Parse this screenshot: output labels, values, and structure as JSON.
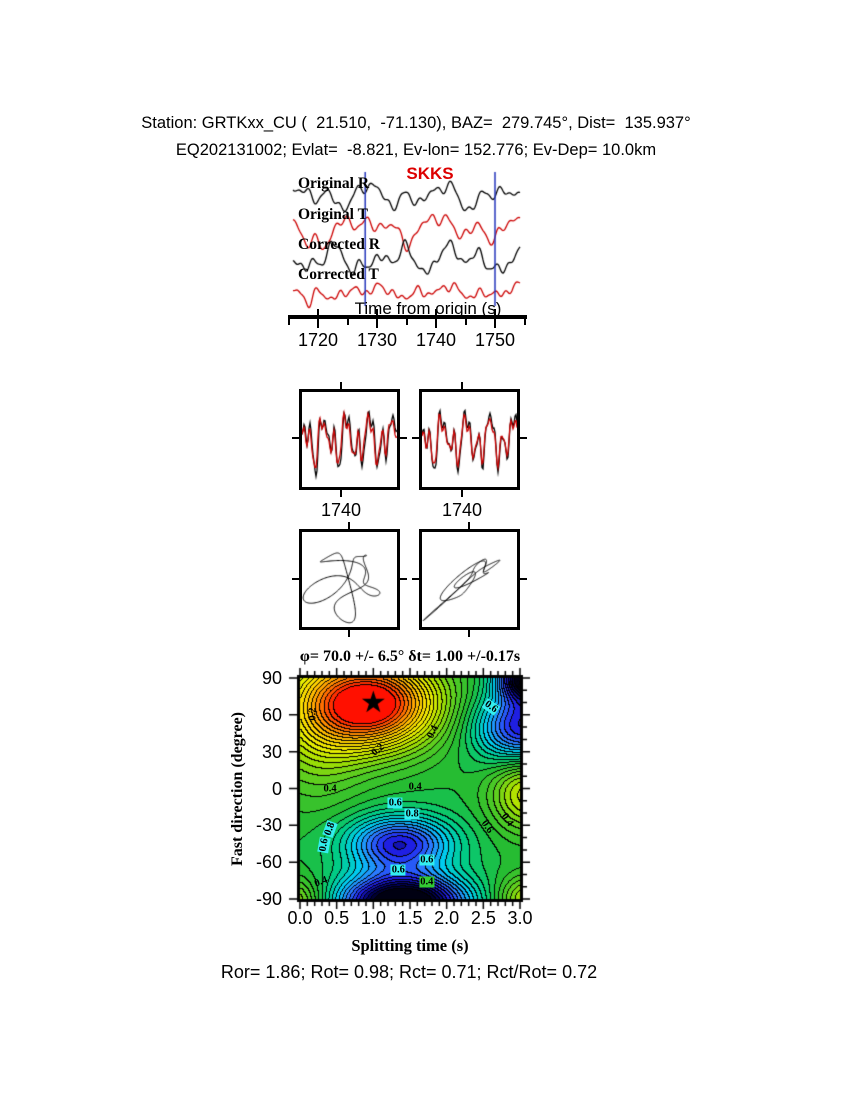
{
  "header": {
    "line1": "Station: GRTKxx_CU (  21.510,  -71.130), BAZ=  279.745°, Dist=  135.937°",
    "line2": "EQ202131002; Evlat=  -8.821, Ev-lon= 152.776; Ev-Dep= 10.0km"
  },
  "footer": {
    "stats": "Ror= 1.86; Rot= 0.98; Rct= 0.71; Rct/Rot= 0.72"
  },
  "chart_data": [
    {
      "type": "line",
      "panel": "seismograms",
      "phase": "SKKS",
      "phase_color": "#dd0000",
      "xlabel": "Time from origin (s)",
      "x_ticks": [
        1720,
        1730,
        1740,
        1750
      ],
      "x_minor_step": 5,
      "x_range": [
        1715,
        1755
      ],
      "window": [
        1728,
        1750
      ],
      "pick_color": "#2233bb",
      "traces": [
        {
          "name": "Original R",
          "color": "#000000",
          "baseline": 30,
          "harmonics": [
            [
              7,
              3.3,
              0.8
            ],
            [
              5.5,
              5.7,
              2.4
            ],
            [
              4.5,
              9.1,
              4.9
            ],
            [
              3,
              14.3,
              1.6
            ],
            [
              2,
              22.7,
              3.9
            ]
          ],
          "spikes": []
        },
        {
          "name": "Original T",
          "color": "#cc0000",
          "baseline": 62,
          "harmonics": [
            [
              8,
              2.9,
              2.2
            ],
            [
              6,
              5.1,
              0.7
            ],
            [
              5,
              8.3,
              3.4
            ],
            [
              3.5,
              13.7,
              5.6
            ],
            [
              2.5,
              21.1,
              1.3
            ]
          ],
          "spikes": [
            [
              0.06,
              -18,
              0.025
            ]
          ]
        },
        {
          "name": "Corrected R",
          "color": "#000000",
          "baseline": 94,
          "harmonics": [
            [
              7.5,
              3.5,
              4.1
            ],
            [
              6,
              6.1,
              0.9
            ],
            [
              5,
              9.7,
              2.7
            ],
            [
              3.5,
              15.1,
              5.2
            ],
            [
              2,
              24.3,
              1.8
            ]
          ],
          "spikes": [
            [
              0.66,
              12,
              0.02
            ]
          ]
        },
        {
          "name": "Corrected T",
          "color": "#cc0000",
          "baseline": 126,
          "harmonics": [
            [
              3.5,
              3.1,
              1.1
            ],
            [
              3,
              6.7,
              3.8
            ],
            [
              2.6,
              11.3,
              0.4
            ],
            [
              2.2,
              17.9,
              2.9
            ],
            [
              1.5,
              26.1,
              5.0
            ]
          ],
          "spikes": [
            [
              0.07,
              -14,
              0.02
            ]
          ]
        }
      ]
    },
    {
      "type": "line",
      "panel": "windowed waveform comparison",
      "boxes": [
        {
          "tick_label": "1740",
          "black": [
            [
              16,
              4.3,
              1.2
            ],
            [
              13,
              7.9,
              3.7
            ],
            [
              9,
              12.1,
              0.3
            ],
            [
              6,
              19.3,
              4.4
            ]
          ],
          "red": [
            [
              14,
              4.3,
              1.55
            ],
            [
              11,
              7.9,
              4.05
            ],
            [
              8,
              12.1,
              0.65
            ],
            [
              5,
              19.3,
              4.75
            ]
          ]
        },
        {
          "tick_label": "1740",
          "black": [
            [
              16,
              4.1,
              2.0
            ],
            [
              13,
              7.7,
              4.5
            ],
            [
              9,
              11.9,
              1.1
            ],
            [
              6,
              18.7,
              5.2
            ]
          ],
          "red": [
            [
              13,
              4.1,
              2.15
            ],
            [
              11,
              7.7,
              4.65
            ],
            [
              8,
              11.9,
              1.25
            ],
            [
              5,
              18.7,
              5.35
            ]
          ]
        }
      ]
    },
    {
      "type": "scatter",
      "panel": "particle motion",
      "boxes": [
        {
          "x": [
            [
              20,
              2,
              0.3
            ],
            [
              14,
              3,
              1.9
            ],
            [
              9,
              5,
              4.2
            ],
            [
              5,
              8,
              0.8
            ]
          ],
          "y": [
            [
              21,
              2,
              1.8
            ],
            [
              14,
              3,
              0.4
            ],
            [
              8,
              5,
              2.9
            ],
            [
              5,
              7,
              5.1
            ]
          ]
        },
        {
          "x": [
            [
              20,
              2,
              0.3
            ],
            [
              14,
              3,
              1.9
            ],
            [
              9,
              5,
              4.2
            ],
            [
              5,
              8,
              0.8
            ]
          ],
          "y": [
            [
              16,
              2,
              0.5
            ],
            [
              11,
              3,
              2.1
            ],
            [
              7,
              5,
              4.4
            ],
            [
              4,
              8,
              1.0
            ],
            [
              7,
              4,
              2.0
            ]
          ]
        }
      ]
    },
    {
      "type": "heatmap",
      "panel": "misfit contour map",
      "title": "φ= 70.0 +/- 6.5° δt= 1.00 +/-0.17s",
      "xlabel": "Splitting time (s)",
      "ylabel": "Fast direction (degree)",
      "x_ticks": [
        "0.0",
        "0.5",
        "1.0",
        "1.5",
        "2.0",
        "2.5",
        "3.0"
      ],
      "y_ticks": [
        90,
        60,
        30,
        0,
        -30,
        -60,
        -90
      ],
      "x_range": [
        0,
        3
      ],
      "y_range": [
        -90,
        90
      ],
      "best_fit": {
        "phi": 70.0,
        "phi_err": 6.5,
        "dt": 1.0,
        "dt_err": 0.17
      },
      "field": {
        "base": 0.47,
        "nbands": 36,
        "bumps": [
          [
            1.0,
            70,
            0.55,
            0.62,
            26
          ],
          [
            0.2,
            55,
            0.16,
            0.5,
            42
          ],
          [
            3.05,
            50,
            -0.34,
            0.45,
            20
          ],
          [
            3.1,
            92,
            -0.5,
            0.28,
            14
          ],
          [
            1.35,
            -45,
            -0.33,
            0.5,
            16
          ],
          [
            1.4,
            -93,
            -0.55,
            0.6,
            16
          ],
          [
            3.1,
            -3,
            0.22,
            0.35,
            22
          ],
          [
            -0.15,
            -93,
            0.18,
            0.33,
            14
          ],
          [
            3.15,
            -91,
            0.2,
            0.33,
            14
          ]
        ]
      },
      "palette": [
        [
          0.0,
          "#000000"
        ],
        [
          0.08,
          "#000066"
        ],
        [
          0.16,
          "#2222ee"
        ],
        [
          0.24,
          "#2a7fff"
        ],
        [
          0.32,
          "#00ccee"
        ],
        [
          0.4,
          "#00cc88"
        ],
        [
          0.48,
          "#22bb33"
        ],
        [
          0.56,
          "#55cc22"
        ],
        [
          0.64,
          "#a8e000"
        ],
        [
          0.72,
          "#eeee00"
        ],
        [
          0.8,
          "#ffcc00"
        ],
        [
          0.88,
          "#ff8800"
        ],
        [
          0.94,
          "#ff4400"
        ],
        [
          1.0,
          "#ff0000"
        ]
      ],
      "labels": [
        [
          "0.2",
          0.18,
          61,
          -90,
          "plain"
        ],
        [
          "0.2",
          1.07,
          31,
          -40,
          "plain"
        ],
        [
          "0.4",
          1.82,
          46,
          -65,
          "plain"
        ],
        [
          "0.6",
          2.6,
          66,
          35,
          "cyan"
        ],
        [
          "0.2",
          2.93,
          84,
          0,
          "plain"
        ],
        [
          "0.4",
          0.41,
          0,
          0,
          "plain"
        ],
        [
          "0.4",
          1.57,
          1,
          0,
          "plain"
        ],
        [
          "0.6",
          1.3,
          -12,
          0,
          "cyan"
        ],
        [
          "0.8",
          1.53,
          -21,
          0,
          "cyan"
        ],
        [
          "0.8",
          0.41,
          -33,
          -70,
          "cyan"
        ],
        [
          "0.6",
          0.33,
          -46,
          -80,
          "cyan"
        ],
        [
          "0.6",
          1.73,
          -58,
          0,
          "cyan"
        ],
        [
          "0.6",
          1.34,
          -66,
          0,
          "cyan"
        ],
        [
          "0.4",
          1.73,
          -76,
          0,
          "green"
        ],
        [
          "0.4",
          0.28,
          -76,
          -20,
          "plain"
        ],
        [
          "0.6",
          2.55,
          -31,
          55,
          "plain"
        ],
        [
          "0.4",
          2.82,
          -26,
          55,
          "plain"
        ]
      ]
    }
  ]
}
